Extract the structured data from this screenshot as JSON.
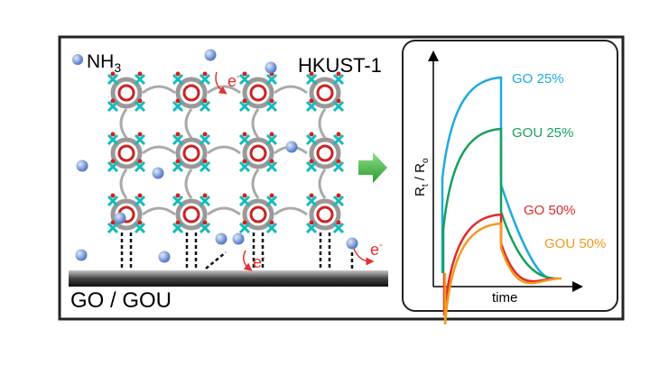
{
  "scene": {
    "gas": {
      "base": "NH",
      "sub": "3"
    },
    "framework": "HKUST-1",
    "substrate": "GO / GOU",
    "electron_labels": [
      {
        "base": "e",
        "sup": "-"
      },
      {
        "base": "e",
        "sup": "-"
      },
      {
        "base": "e",
        "sup": "-"
      }
    ]
  },
  "inset": {
    "y_label": {
      "r1": "R",
      "s1": "t",
      "mid": " / R",
      "s2": "o"
    },
    "x_label": "time",
    "curves": [
      {
        "name": "GO 25%",
        "color": "#1fa9df"
      },
      {
        "name": "GOU 25%",
        "color": "#16a05a"
      },
      {
        "name": "GO 50%",
        "color": "#e02a2a"
      },
      {
        "name": "GOU 50%",
        "color": "#f29a1d"
      }
    ]
  }
}
